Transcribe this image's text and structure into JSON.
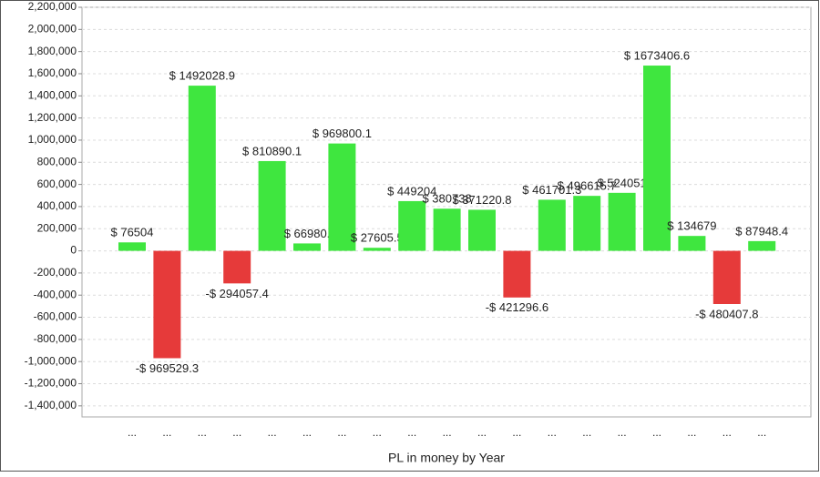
{
  "chart_data": {
    "type": "bar",
    "x_label": "PL in money by Year",
    "categories": [
      "...",
      "...",
      "...",
      "...",
      "...",
      "...",
      "...",
      "...",
      "...",
      "...",
      "...",
      "...",
      "...",
      "...",
      "...",
      "...",
      "...",
      "...",
      "..."
    ],
    "values": [
      76504,
      -969529.3,
      1492028.9,
      -294057.4,
      810890.1,
      66980,
      969800.1,
      27605.5,
      449204,
      380738,
      371220.8,
      -421296.6,
      461701.3,
      496615.7,
      524051,
      1673406.6,
      134679,
      -480407.8,
      87948.4
    ],
    "value_labels": [
      "$ 76504",
      "-$ 969529.3",
      "$ 1492028.9",
      "-$ 294057.4",
      "$ 810890.1",
      "$ 66980.",
      "$ 969800.1",
      "$ 27605.5",
      "$ 449204",
      "$ 380738",
      "$ 371220.8",
      "-$ 421296.6",
      "$ 461701.3",
      "$ 496615.7",
      "$ 524051",
      "$ 1673406.6",
      "$ 134679",
      "-$ 480407.8",
      "$ 87948.4"
    ],
    "positive_color": "#3fe63f",
    "negative_color": "#e63a3a",
    "ylim": [
      -1500000,
      2200000
    ],
    "yticks": [
      {
        "value": -1400000,
        "label": "-1,400,000"
      },
      {
        "value": -1200000,
        "label": "-1,200,000"
      },
      {
        "value": -1000000,
        "label": "-1,000,000"
      },
      {
        "value": -800000,
        "label": "-800,000"
      },
      {
        "value": -600000,
        "label": "-600,000"
      },
      {
        "value": -400000,
        "label": "-400,000"
      },
      {
        "value": -200000,
        "label": "-200,000"
      },
      0,
      {
        "value": 200000,
        "label": "200,000"
      },
      {
        "value": 400000,
        "label": "400,000"
      },
      {
        "value": 600000,
        "label": "600,000"
      },
      {
        "value": 800000,
        "label": "800,000"
      },
      {
        "value": 1000000,
        "label": "1,000,000"
      },
      {
        "value": 1200000,
        "label": "1,200,000"
      },
      {
        "value": 1400000,
        "label": "1,400,000"
      },
      {
        "value": 1600000,
        "label": "1,600,000"
      },
      {
        "value": 1800000,
        "label": "1,800,000"
      },
      {
        "value": 2000000,
        "label": "2,000,000"
      },
      {
        "value": 2200000,
        "label": "2,200,000"
      }
    ],
    "grid": true
  }
}
